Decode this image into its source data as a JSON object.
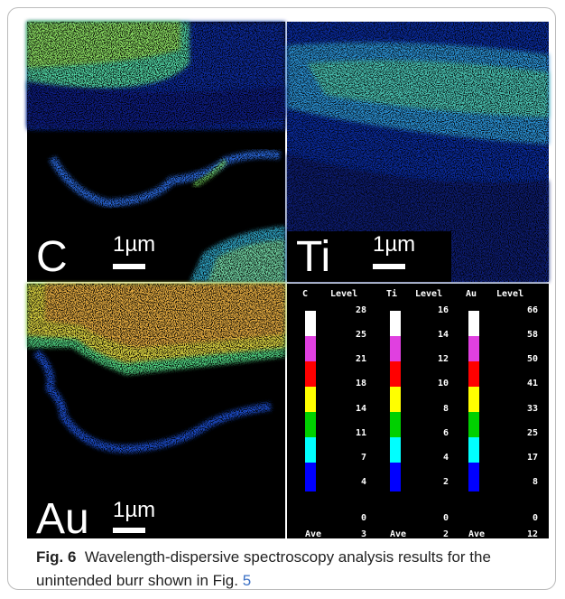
{
  "panels": [
    {
      "element": "C",
      "scale_bar": "1µm"
    },
    {
      "element": "Ti",
      "scale_bar": "1µm"
    },
    {
      "element": "Au",
      "scale_bar": "1µm"
    }
  ],
  "legend": {
    "level_header": "Level",
    "ave_label": "Ave",
    "columns": [
      {
        "element": "C",
        "levels": [
          28,
          25,
          21,
          18,
          14,
          11,
          7,
          4,
          0
        ],
        "ave": 3
      },
      {
        "element": "Ti",
        "levels": [
          16,
          14,
          12,
          10,
          8,
          6,
          4,
          2,
          0
        ],
        "ave": 2
      },
      {
        "element": "Au",
        "levels": [
          66,
          58,
          50,
          41,
          33,
          25,
          17,
          8,
          0
        ],
        "ave": 12
      }
    ]
  },
  "caption": {
    "label": "Fig. 6",
    "text": "Wavelength-dispersive spectroscopy analysis results for the unintended burr shown in Fig.",
    "link": "5"
  }
}
